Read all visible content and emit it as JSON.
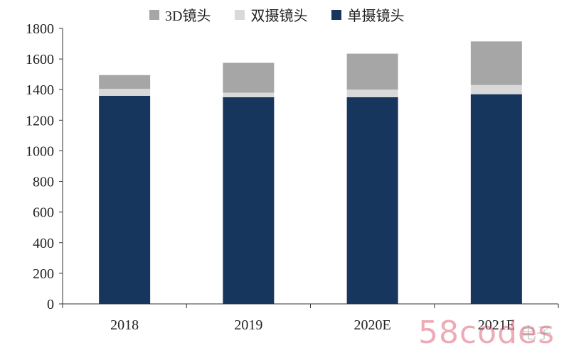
{
  "chart_data": {
    "type": "bar",
    "stacked": true,
    "categories": [
      "2018",
      "2019",
      "2020E",
      "2021E"
    ],
    "series": [
      {
        "name": "单摄镜头",
        "values": [
          1360,
          1350,
          1350,
          1370
        ],
        "color": "#17365d"
      },
      {
        "name": "双摄镜头",
        "values": [
          45,
          30,
          50,
          60
        ],
        "color": "#d9d9d9"
      },
      {
        "name": "3D镜头",
        "values": [
          90,
          195,
          235,
          285
        ],
        "color": "#a6a6a6"
      }
    ],
    "legend": {
      "position": "top",
      "order": [
        "3D镜头",
        "双摄镜头",
        "单摄镜头"
      ]
    },
    "ylim": [
      0,
      1800
    ],
    "yticks": [
      0,
      200,
      400,
      600,
      800,
      1000,
      1200,
      1400,
      1600,
      1800
    ],
    "grid": false,
    "xlabel": "",
    "ylabel": ""
  },
  "watermark": {
    "main": "58codes",
    "secondary": "电子"
  }
}
